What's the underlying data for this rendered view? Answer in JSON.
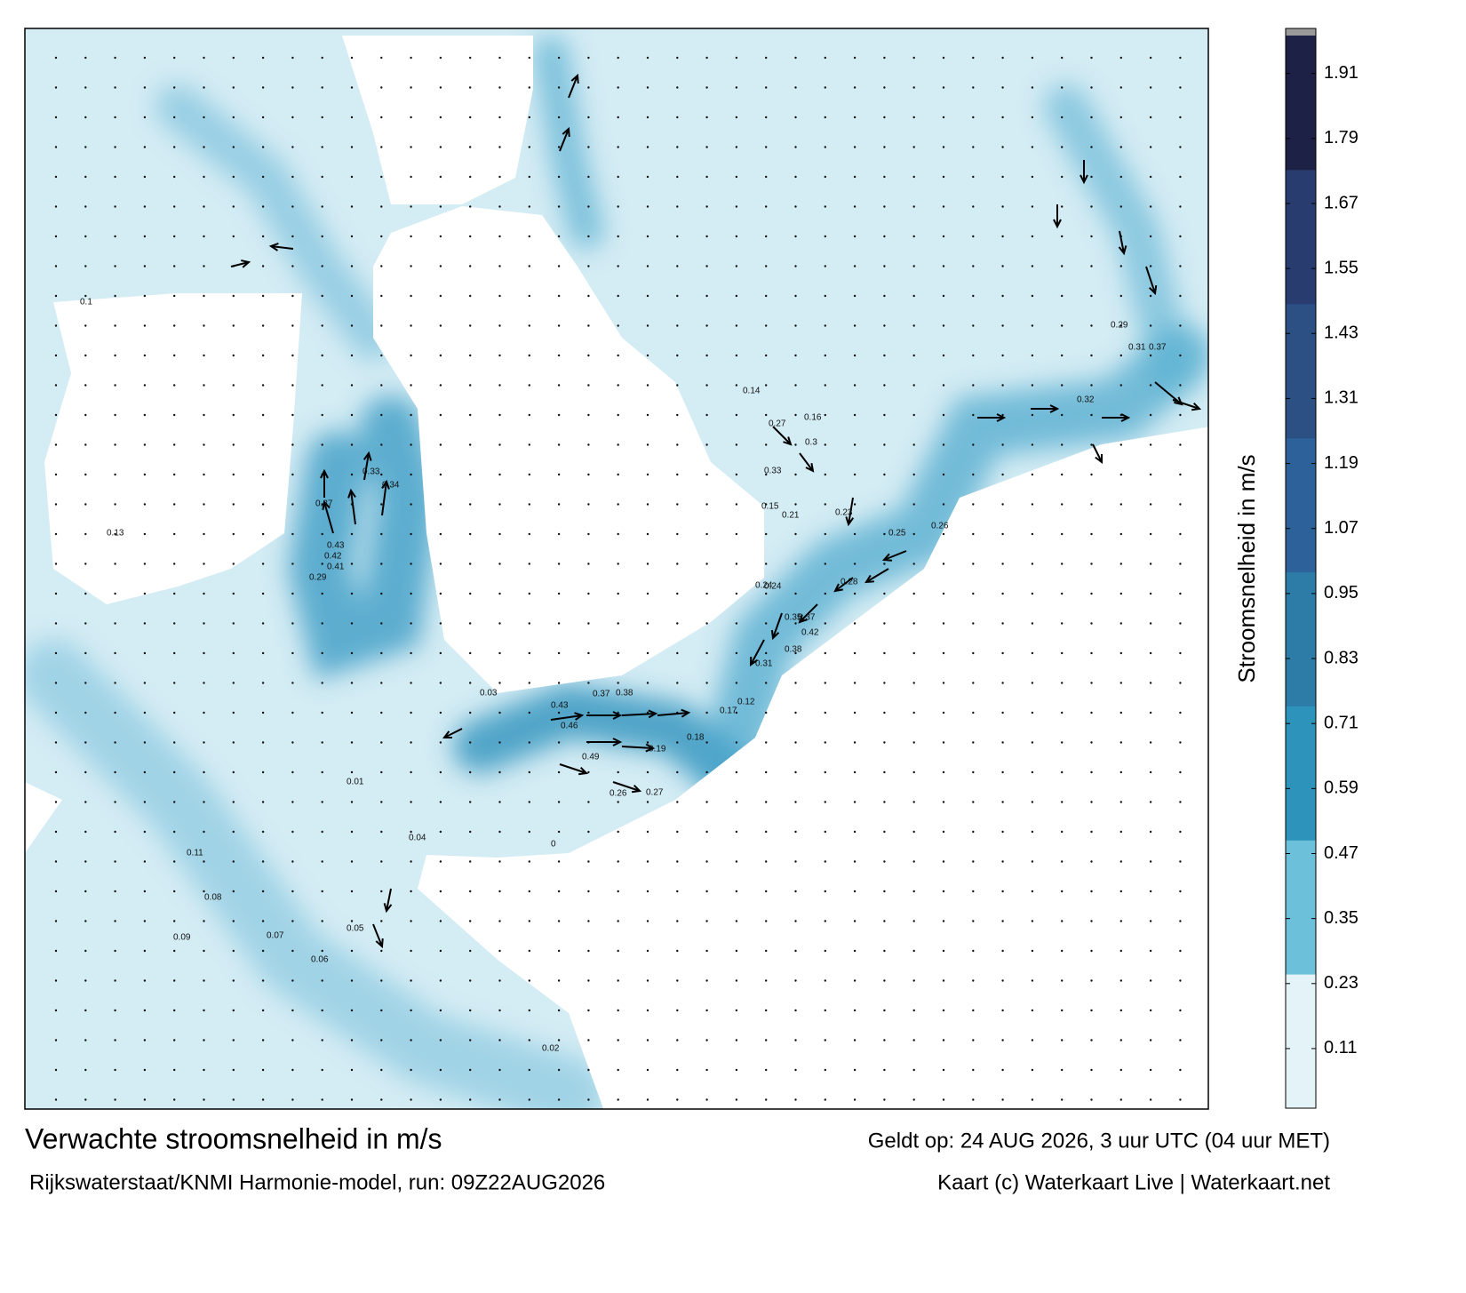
{
  "header": {
    "title": "Verwachte stroomsnelheid in m/s",
    "subtitle": "Rijkswaterstaat/KNMI Harmonie-model, run: 09Z22AUG2026",
    "valid_time": "Geldt op: 24 AUG 2026, 3 uur UTC (04 uur MET)",
    "credit": "Kaart (c) Waterkaart Live | Waterkaart.net"
  },
  "colorbar": {
    "label": "Stroomsnelheid in m/s",
    "lim": [
      0,
      1.98
    ],
    "ticks": [
      0.11,
      0.23,
      0.35,
      0.47,
      0.59,
      0.71,
      0.83,
      0.95,
      1.07,
      1.19,
      1.31,
      1.43,
      1.55,
      1.67,
      1.79,
      1.91
    ],
    "colors": [
      "#e4f3f8",
      "#6cc0d9",
      "#2d93ba",
      "#2d7ca8",
      "#2d6199",
      "#2c4f84",
      "#293c70",
      "#1d2145"
    ]
  },
  "map_labels": [
    "0.43",
    "0.42",
    "0.41",
    "0.37",
    "0.34",
    "0.33",
    "0.29",
    "0.46",
    "0.49",
    "0.43",
    "0.37",
    "0.38",
    "0.27",
    "0.26",
    "0.24",
    "0.23",
    "0.35",
    "0.37",
    "0.42",
    "0.38",
    "0.31",
    "0.33",
    "0.3",
    "0.27",
    "0.28",
    "0.26",
    "0.25",
    "0.32",
    "0.31",
    "0.37",
    "0.29",
    "0.24",
    "0.21",
    "0.19",
    "0.18",
    "0.17",
    "0.16",
    "0.15",
    "0.14",
    "0.13",
    "0.12",
    "0.11",
    "0.1",
    "0.09",
    "0.08",
    "0.07",
    "0.06",
    "0.05",
    "0.04",
    "0.03",
    "0.02",
    "0.01",
    "0"
  ]
}
